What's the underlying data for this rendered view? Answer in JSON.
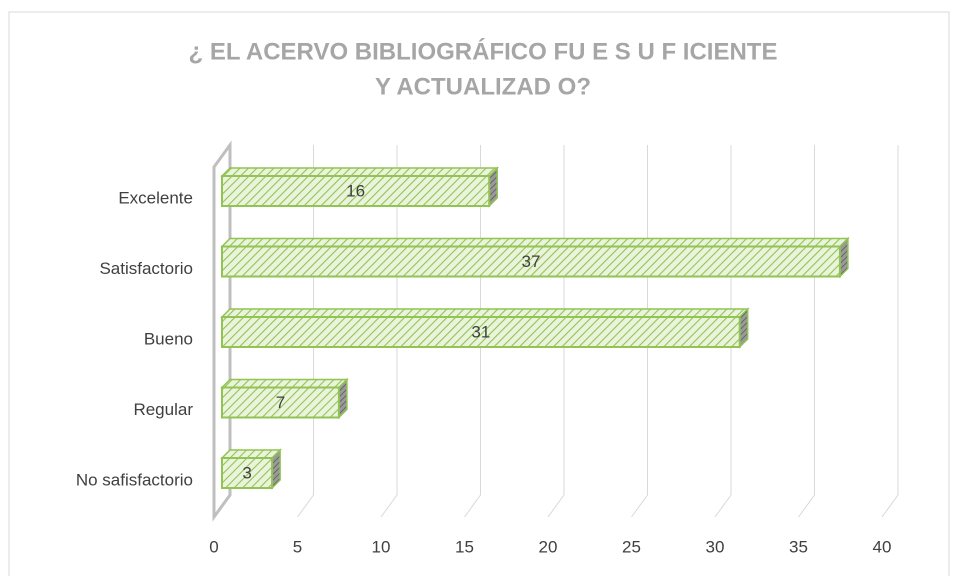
{
  "chart_data": {
    "type": "bar",
    "orientation": "horizontal",
    "title": [
      "¿ EL ACERVO BIBLIOGRÁFICO FU E S U F ICIENTE",
      "Y ACTUALIZAD O?"
    ],
    "categories": [
      "Excelente",
      "Satisfactorio",
      "Bueno",
      "Regular",
      "No safisfactorio"
    ],
    "values": [
      16,
      37,
      31,
      7,
      3
    ],
    "color": "#92c353",
    "xlim": [
      0,
      40
    ],
    "xticks": [
      0,
      5,
      10,
      15,
      20,
      25,
      30,
      35,
      40
    ],
    "grid": true
  }
}
